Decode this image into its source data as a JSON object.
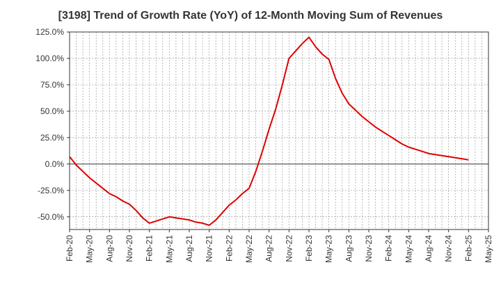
{
  "chart_data": {
    "type": "line",
    "title": "[3198]  Trend of Growth Rate (YoY) of 12-Month Moving Sum of Revenues",
    "xlabel": "",
    "ylabel": "",
    "ylim": [
      -62,
      125
    ],
    "y_ticks": [
      125,
      100,
      75,
      50,
      25,
      0,
      -25,
      -50
    ],
    "y_tick_labels": [
      "125.0%",
      "100.0%",
      "75.0%",
      "50.0%",
      "25.0%",
      "0.0%",
      "-25.0%",
      "-50.0%"
    ],
    "x_tick_labels": [
      "Feb-20",
      "May-20",
      "Aug-20",
      "Nov-20",
      "Feb-21",
      "May-21",
      "Aug-21",
      "Nov-21",
      "Feb-22",
      "May-22",
      "Aug-22",
      "Nov-22",
      "Feb-23",
      "May-23",
      "Aug-23",
      "Nov-23",
      "Feb-24",
      "May-24",
      "Aug-24",
      "Nov-24",
      "Feb-25",
      "May-25"
    ],
    "grid": true,
    "line_color": "#dd0000",
    "series": [
      {
        "x": [
          "Feb-20",
          "Mar-20",
          "Apr-20",
          "May-20",
          "Jun-20",
          "Jul-20",
          "Aug-20",
          "Sep-20",
          "Oct-20",
          "Nov-20",
          "Dec-20",
          "Jan-21",
          "Feb-21",
          "Mar-21",
          "Apr-21",
          "May-21",
          "Jun-21",
          "Jul-21",
          "Aug-21",
          "Sep-21",
          "Oct-21",
          "Nov-21",
          "Dec-21",
          "Jan-22",
          "Feb-22",
          "Mar-22",
          "Apr-22",
          "May-22",
          "Jun-22",
          "Jul-22",
          "Aug-22",
          "Sep-22",
          "Oct-22",
          "Nov-22",
          "Dec-22",
          "Jan-23",
          "Feb-23",
          "Mar-23",
          "Apr-23",
          "May-23",
          "Jun-23",
          "Jul-23",
          "Aug-23",
          "Sep-23",
          "Oct-23",
          "Nov-23",
          "Dec-23",
          "Jan-24",
          "Feb-24",
          "Mar-24",
          "Apr-24",
          "May-24",
          "Jun-24",
          "Jul-24",
          "Aug-24",
          "Sep-24",
          "Oct-24",
          "Nov-24",
          "Dec-24",
          "Jan-25",
          "Feb-25"
        ],
        "values": [
          7,
          -1,
          -7,
          -13,
          -18,
          -23,
          -28,
          -31,
          -35,
          -38,
          -44,
          -51,
          -56,
          -54,
          -52,
          -50,
          -51,
          -52,
          -53,
          -55,
          -56,
          -58,
          -53,
          -46,
          -39,
          -34,
          -28,
          -23,
          -7,
          12,
          33,
          52,
          75,
          100,
          107,
          114,
          120,
          111,
          104,
          99,
          81,
          67,
          57,
          51,
          45,
          40,
          35,
          31,
          27,
          23,
          19,
          16,
          14,
          12,
          10,
          9,
          8,
          7,
          6,
          5,
          4
        ]
      }
    ]
  }
}
